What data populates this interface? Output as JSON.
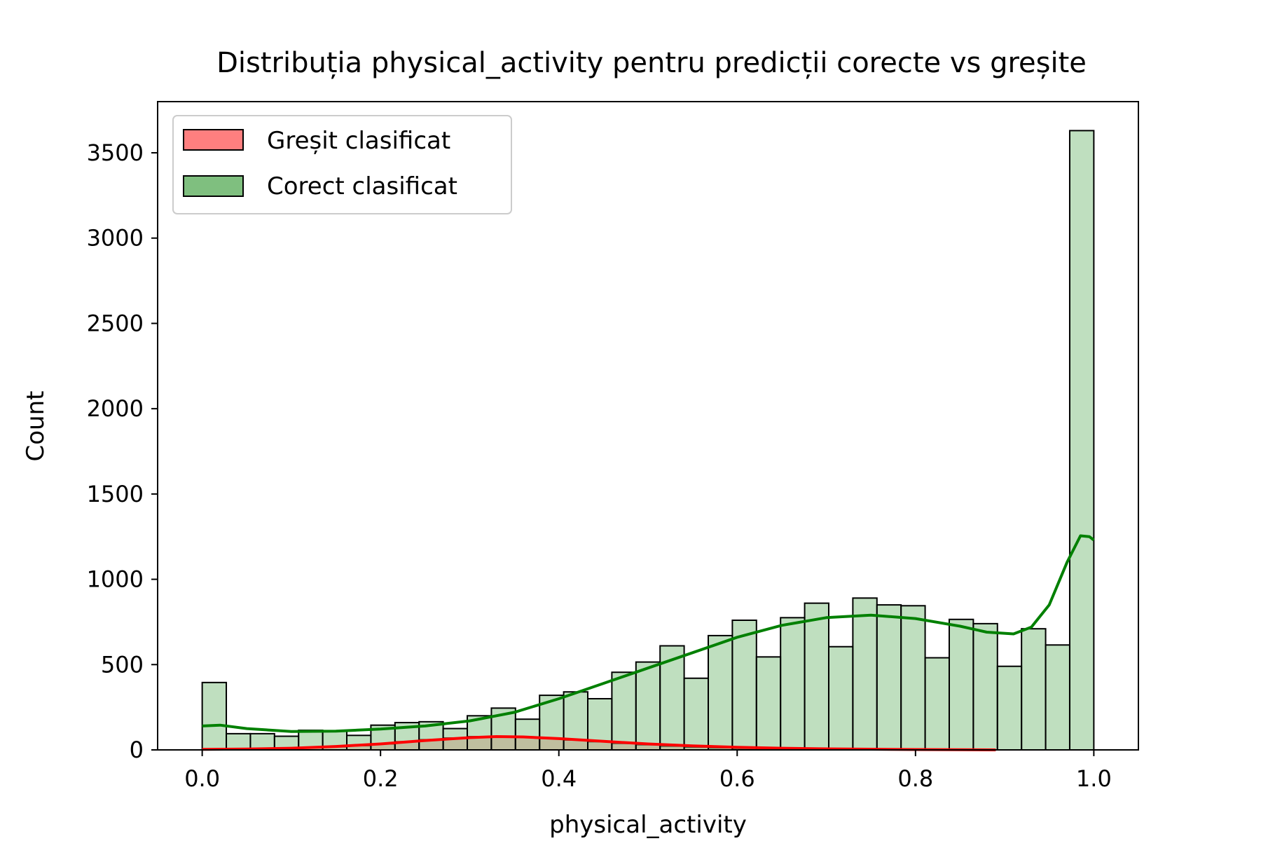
{
  "chart_data": {
    "type": "histogram",
    "title": "Distribuția physical_activity pentru predicții corecte vs greșite",
    "xlabel": "physical_activity",
    "ylabel": "Count",
    "xlim": [
      -0.05,
      1.05
    ],
    "ylim": [
      0,
      3800
    ],
    "xticks": [
      0.0,
      0.2,
      0.4,
      0.6,
      0.8,
      1.0
    ],
    "xtick_labels": [
      "0.0",
      "0.2",
      "0.4",
      "0.6",
      "0.8",
      "1.0"
    ],
    "yticks": [
      0,
      500,
      1000,
      1500,
      2000,
      2500,
      3000,
      3500
    ],
    "ytick_labels": [
      "0",
      "500",
      "1000",
      "1500",
      "2000",
      "2500",
      "3000",
      "3500"
    ],
    "grid": false,
    "legend_position": "top-left",
    "bin_start": 0.0,
    "bin_end": 1.0,
    "series": [
      {
        "name": "Greșit clasificat",
        "color": "#ff0000",
        "fill": "#ff7f7f",
        "counts": [
          2,
          3,
          5,
          8,
          12,
          18,
          25,
          35,
          48,
          60,
          70,
          78,
          80,
          76,
          68,
          58,
          48,
          38,
          30,
          22,
          16,
          12,
          9,
          7,
          5,
          4,
          3,
          2,
          2,
          1,
          0,
          0,
          0,
          0,
          0,
          0,
          0
        ],
        "kde": [
          [
            0.0,
            3
          ],
          [
            0.05,
            5
          ],
          [
            0.1,
            10
          ],
          [
            0.15,
            20
          ],
          [
            0.2,
            35
          ],
          [
            0.25,
            55
          ],
          [
            0.3,
            72
          ],
          [
            0.33,
            78
          ],
          [
            0.36,
            76
          ],
          [
            0.4,
            66
          ],
          [
            0.45,
            50
          ],
          [
            0.5,
            35
          ],
          [
            0.55,
            24
          ],
          [
            0.6,
            15
          ],
          [
            0.65,
            10
          ],
          [
            0.7,
            6
          ],
          [
            0.75,
            4
          ],
          [
            0.8,
            2
          ],
          [
            0.85,
            1
          ],
          [
            0.89,
            0
          ]
        ]
      },
      {
        "name": "Corect clasificat",
        "color": "#008000",
        "fill": "#7fbf7f",
        "counts": [
          395,
          95,
          95,
          80,
          115,
          110,
          85,
          145,
          160,
          165,
          125,
          200,
          245,
          180,
          320,
          340,
          300,
          455,
          515,
          610,
          420,
          670,
          760,
          545,
          775,
          860,
          605,
          890,
          850,
          845,
          540,
          765,
          740,
          490,
          710,
          615,
          3630
        ],
        "kde": [
          [
            0.0,
            140
          ],
          [
            0.02,
            145
          ],
          [
            0.05,
            125
          ],
          [
            0.1,
            108
          ],
          [
            0.15,
            110
          ],
          [
            0.2,
            122
          ],
          [
            0.25,
            140
          ],
          [
            0.3,
            170
          ],
          [
            0.35,
            220
          ],
          [
            0.4,
            300
          ],
          [
            0.45,
            390
          ],
          [
            0.5,
            480
          ],
          [
            0.55,
            570
          ],
          [
            0.6,
            660
          ],
          [
            0.65,
            730
          ],
          [
            0.7,
            775
          ],
          [
            0.75,
            790
          ],
          [
            0.8,
            770
          ],
          [
            0.85,
            725
          ],
          [
            0.88,
            690
          ],
          [
            0.91,
            680
          ],
          [
            0.93,
            720
          ],
          [
            0.95,
            850
          ],
          [
            0.97,
            1100
          ],
          [
            0.985,
            1255
          ],
          [
            0.995,
            1250
          ],
          [
            1.0,
            1230
          ]
        ]
      }
    ]
  }
}
